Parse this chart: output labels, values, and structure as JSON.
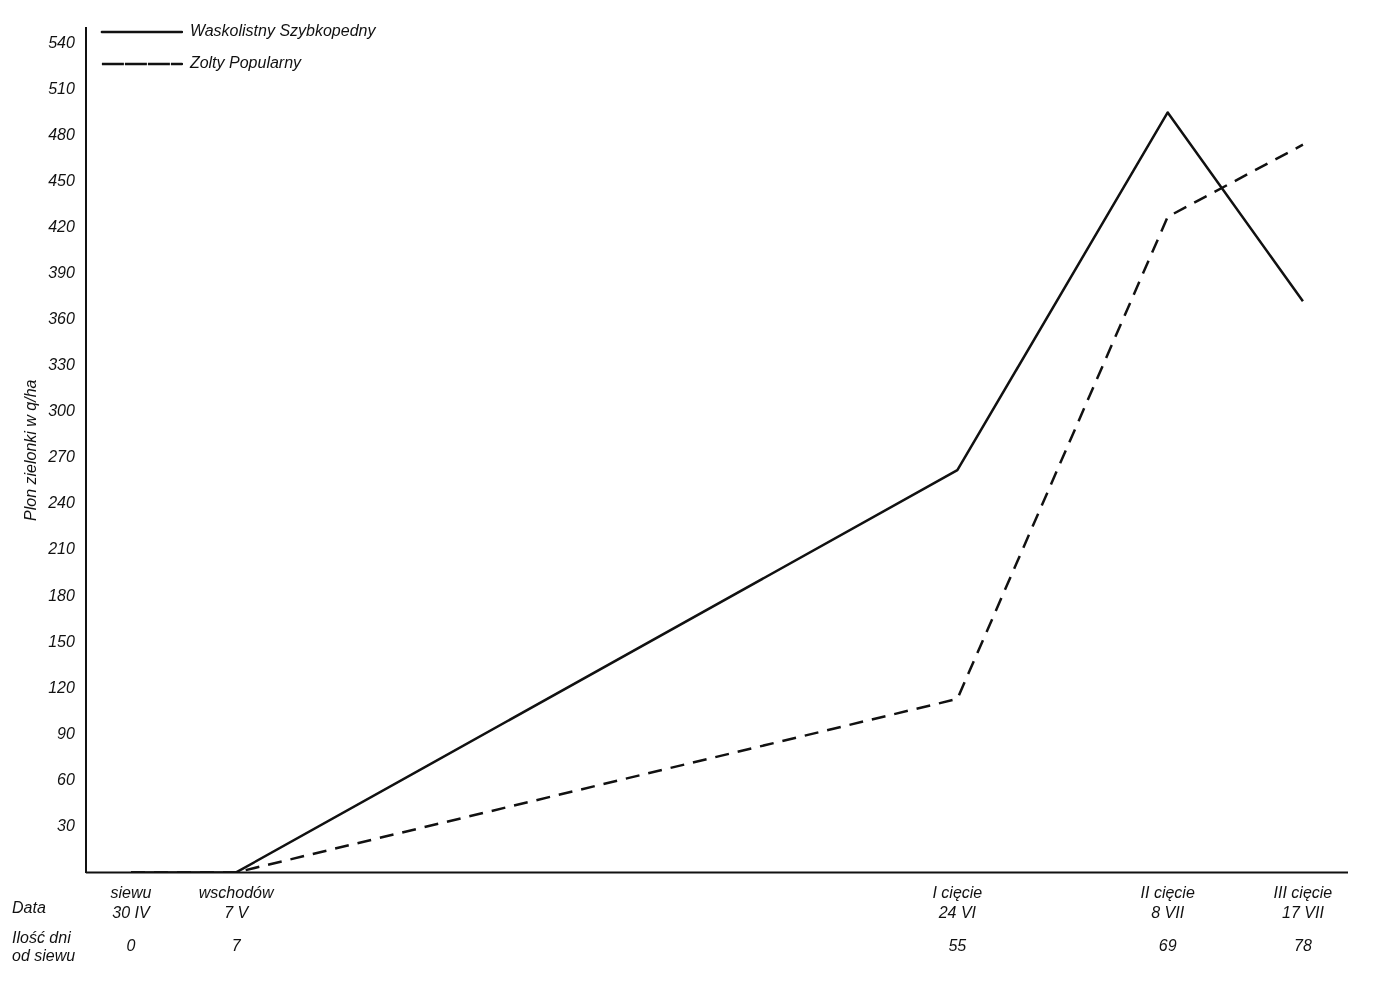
{
  "chart_data": {
    "type": "line",
    "ylabel": "Plon zielonki w q/ha",
    "x": [
      0,
      7,
      55,
      69,
      78
    ],
    "xlim": [
      -3,
      81
    ],
    "xticks": [
      0,
      7,
      55,
      69,
      78
    ],
    "ylim": [
      0,
      550
    ],
    "yticks": [
      30,
      60,
      90,
      120,
      150,
      180,
      210,
      240,
      270,
      300,
      330,
      360,
      390,
      420,
      450,
      480,
      510,
      540
    ],
    "series": [
      {
        "name": "Waskolistny Szybkopedny",
        "color": "#111111",
        "line_style": "solid",
        "values": [
          0,
          0,
          262,
          495,
          372
        ]
      },
      {
        "name": "Zolty Popularny",
        "color": "#111111",
        "line_style": "dashed",
        "values": [
          0,
          0,
          113,
          427,
          474
        ]
      }
    ],
    "legend": "top left",
    "grid": false,
    "marker": "none",
    "x2lim": [
      "--04-27",
      "--07-20"
    ],
    "x2ticks": [
      {
        "value": "--04-30",
        "label": "siewu\n30 IV"
      },
      {
        "value": "--05-07",
        "label": "wschodów\n7 V"
      },
      {
        "value": "--06-24",
        "label": "I cięcie\n24 VI"
      },
      {
        "value": "--07-08",
        "label": "II cięcie\n8 VII"
      },
      {
        "value": "--07-17",
        "label": "III cięcie\n17 VII"
      }
    ],
    "annotations": [
      "Data",
      "Ilość dni od siewu"
    ]
  }
}
